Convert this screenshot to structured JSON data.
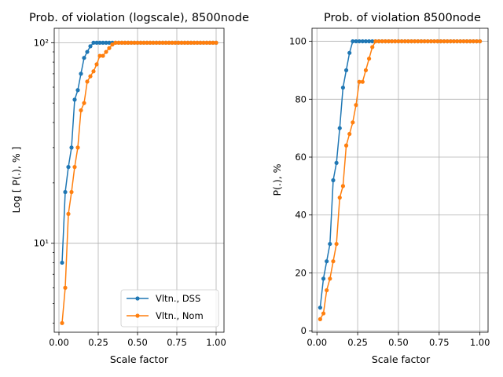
{
  "chart_data": [
    {
      "type": "line",
      "title": "Prob. of violation (logscale), 8500node",
      "xlabel": "Scale factor",
      "ylabel": "Log [ P(.), % ]",
      "yscale": "log",
      "xlim": [
        -0.03,
        1.05
      ],
      "ylim": [
        3.6,
        118
      ],
      "xticks": [
        0.0,
        0.25,
        0.5,
        0.75,
        1.0
      ],
      "xtick_labels": [
        "0.00",
        "0.25",
        "0.50",
        "0.75",
        "1.00"
      ],
      "yticks": [
        10,
        100
      ],
      "ytick_labels": [
        "10¹",
        "10²"
      ],
      "grid": true,
      "legend": "lower-right",
      "x": [
        0.02,
        0.04,
        0.06,
        0.08,
        0.1,
        0.12,
        0.14,
        0.16,
        0.18,
        0.2,
        0.22,
        0.24,
        0.26,
        0.28,
        0.3,
        0.32,
        0.34,
        0.36,
        0.38,
        0.4,
        0.42,
        0.44,
        0.46,
        0.48,
        0.5,
        0.52,
        0.54,
        0.56,
        0.58,
        0.6,
        0.62,
        0.64,
        0.66,
        0.68,
        0.7,
        0.72,
        0.74,
        0.76,
        0.78,
        0.8,
        0.82,
        0.84,
        0.86,
        0.88,
        0.9,
        0.92,
        0.94,
        0.96,
        0.98,
        1.0
      ],
      "series": [
        {
          "name": "Vltn., DSS",
          "color": "#1f77b4",
          "values": [
            8,
            18,
            24,
            30,
            52,
            58,
            70,
            84,
            90,
            96,
            100,
            100,
            100,
            100,
            100,
            100,
            100,
            100,
            100,
            100,
            100,
            100,
            100,
            100,
            100,
            100,
            100,
            100,
            100,
            100,
            100,
            100,
            100,
            100,
            100,
            100,
            100,
            100,
            100,
            100,
            100,
            100,
            100,
            100,
            100,
            100,
            100,
            100,
            100,
            100
          ]
        },
        {
          "name": "Vltn., Nom",
          "color": "#ff7f0e",
          "values": [
            4,
            6,
            14,
            18,
            24,
            30,
            46,
            50,
            64,
            68,
            72,
            78,
            86,
            86,
            90,
            94,
            98,
            100,
            100,
            100,
            100,
            100,
            100,
            100,
            100,
            100,
            100,
            100,
            100,
            100,
            100,
            100,
            100,
            100,
            100,
            100,
            100,
            100,
            100,
            100,
            100,
            100,
            100,
            100,
            100,
            100,
            100,
            100,
            100,
            100
          ]
        }
      ]
    },
    {
      "type": "line",
      "title": "Prob. of violation 8500node",
      "xlabel": "Scale factor",
      "ylabel": "P(.), %",
      "yscale": "linear",
      "xlim": [
        -0.03,
        1.05
      ],
      "ylim": [
        -0.5,
        104.5
      ],
      "xticks": [
        0.0,
        0.25,
        0.5,
        0.75,
        1.0
      ],
      "xtick_labels": [
        "0.00",
        "0.25",
        "0.50",
        "0.75",
        "1.00"
      ],
      "yticks": [
        0,
        20,
        40,
        60,
        80,
        100
      ],
      "ytick_labels": [
        "0",
        "20",
        "40",
        "60",
        "80",
        "100"
      ],
      "grid": true,
      "x": [
        0.02,
        0.04,
        0.06,
        0.08,
        0.1,
        0.12,
        0.14,
        0.16,
        0.18,
        0.2,
        0.22,
        0.24,
        0.26,
        0.28,
        0.3,
        0.32,
        0.34,
        0.36,
        0.38,
        0.4,
        0.42,
        0.44,
        0.46,
        0.48,
        0.5,
        0.52,
        0.54,
        0.56,
        0.58,
        0.6,
        0.62,
        0.64,
        0.66,
        0.68,
        0.7,
        0.72,
        0.74,
        0.76,
        0.78,
        0.8,
        0.82,
        0.84,
        0.86,
        0.88,
        0.9,
        0.92,
        0.94,
        0.96,
        0.98,
        1.0
      ],
      "series": [
        {
          "color": "#1f77b4",
          "values": [
            8,
            18,
            24,
            30,
            52,
            58,
            70,
            84,
            90,
            96,
            100,
            100,
            100,
            100,
            100,
            100,
            100,
            100,
            100,
            100,
            100,
            100,
            100,
            100,
            100,
            100,
            100,
            100,
            100,
            100,
            100,
            100,
            100,
            100,
            100,
            100,
            100,
            100,
            100,
            100,
            100,
            100,
            100,
            100,
            100,
            100,
            100,
            100,
            100,
            100
          ]
        },
        {
          "color": "#ff7f0e",
          "values": [
            4,
            6,
            14,
            18,
            24,
            30,
            46,
            50,
            64,
            68,
            72,
            78,
            86,
            86,
            90,
            94,
            98,
            100,
            100,
            100,
            100,
            100,
            100,
            100,
            100,
            100,
            100,
            100,
            100,
            100,
            100,
            100,
            100,
            100,
            100,
            100,
            100,
            100,
            100,
            100,
            100,
            100,
            100,
            100,
            100,
            100,
            100,
            100,
            100,
            100
          ]
        }
      ]
    }
  ]
}
